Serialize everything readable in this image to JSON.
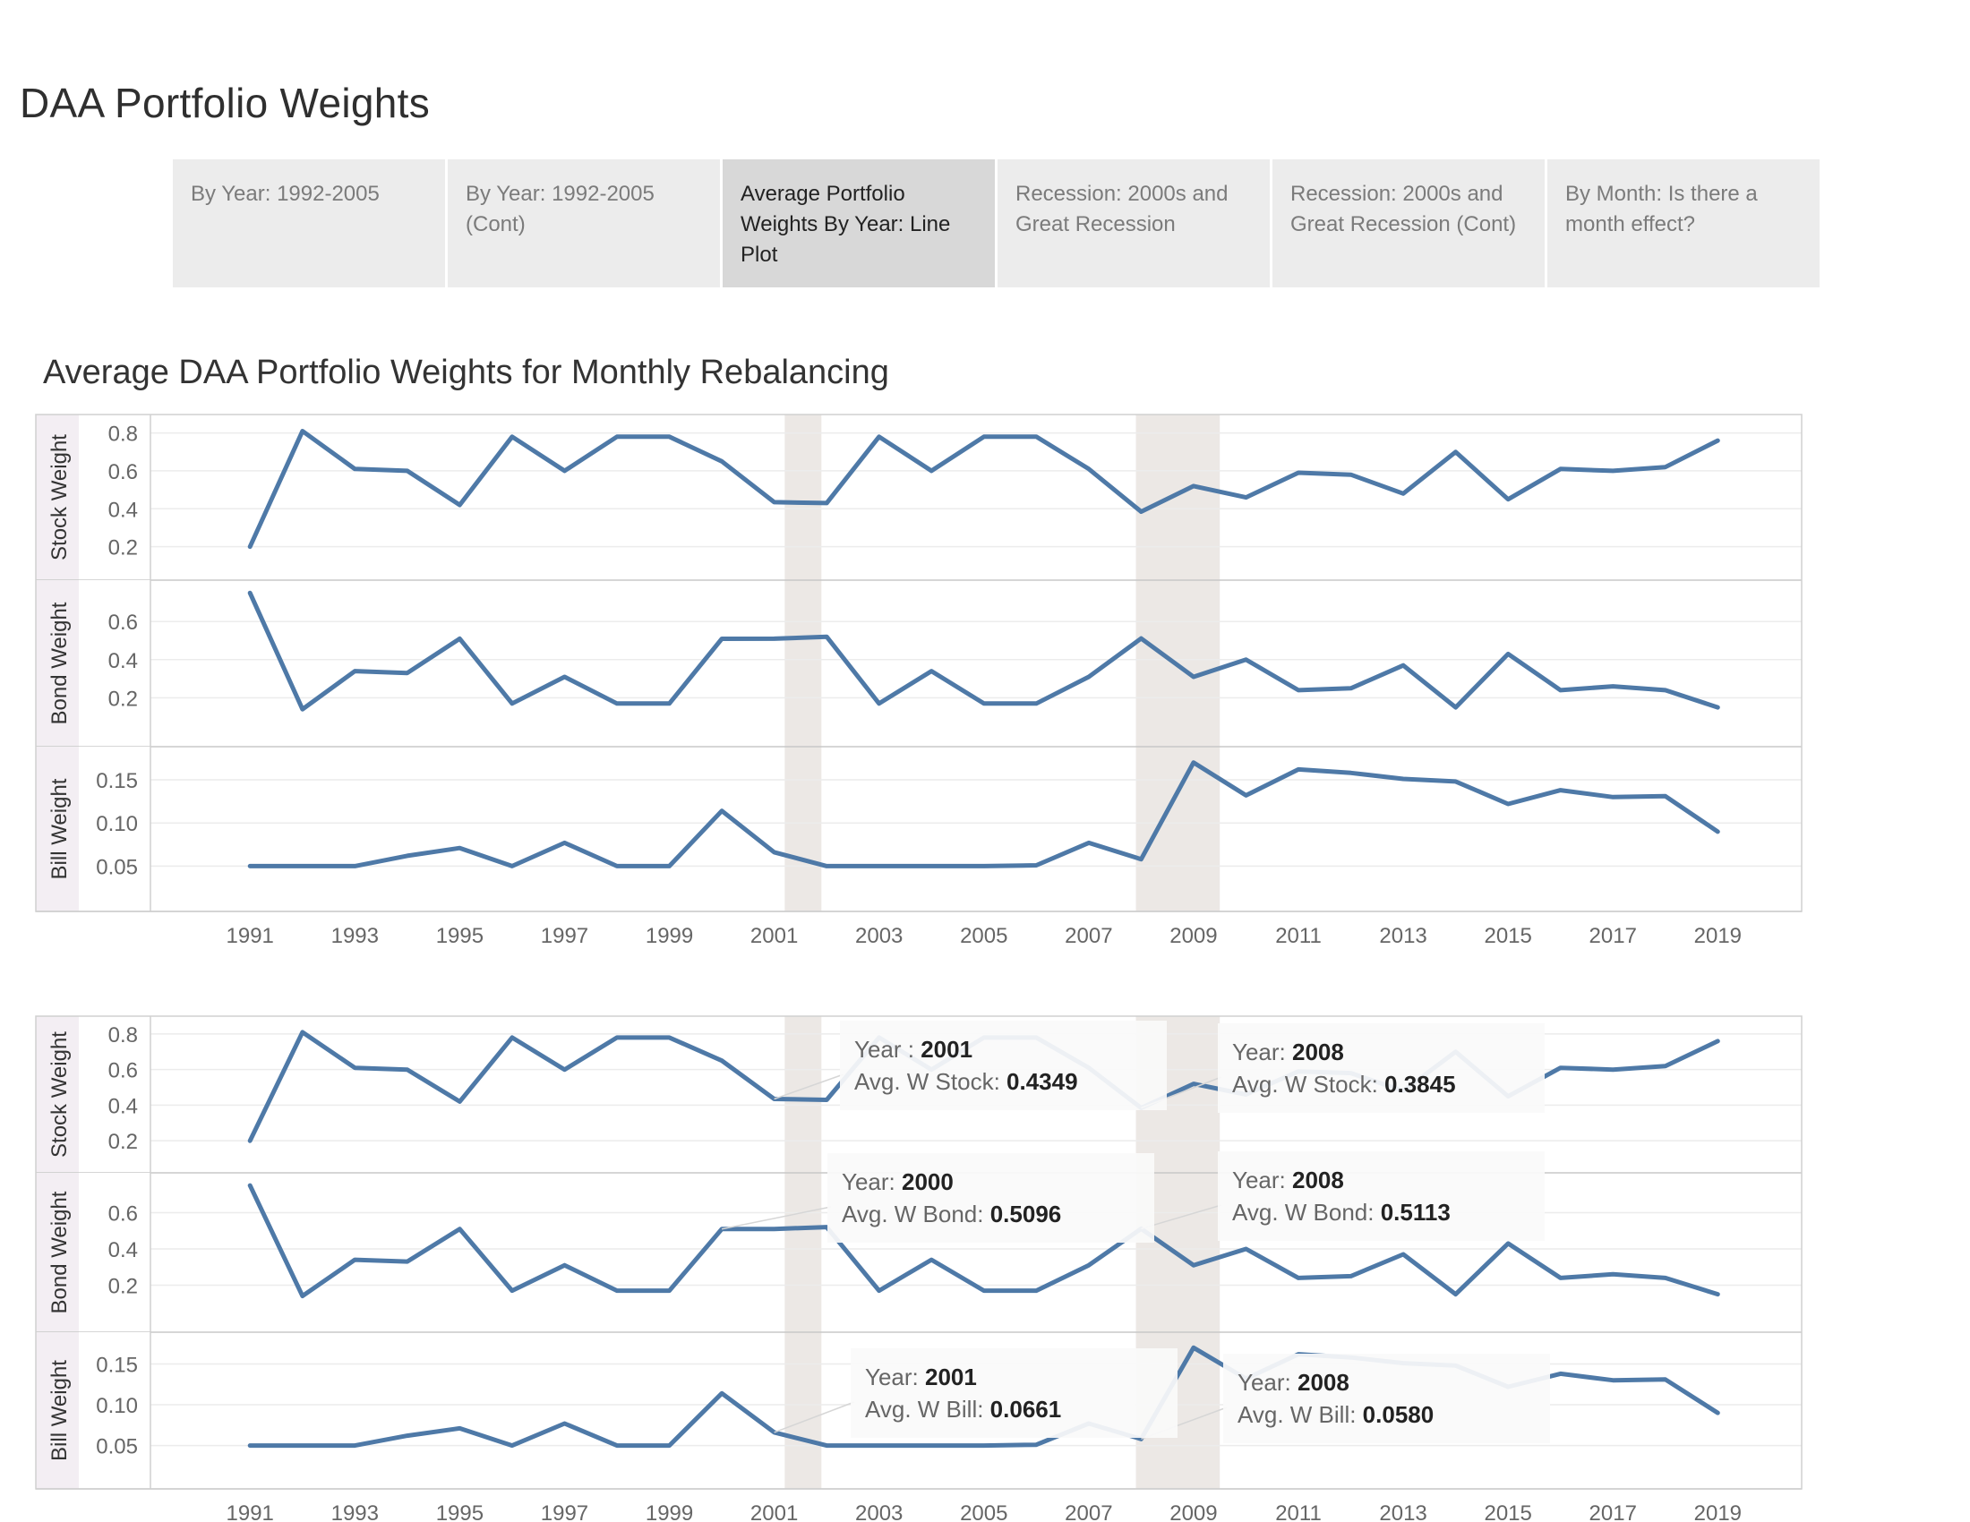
{
  "page_title": "DAA Portfolio Weights",
  "tabs": [
    {
      "label": "By Year: 1992-2005",
      "active": false
    },
    {
      "label": "By Year: 1992-2005 (Cont)",
      "active": false
    },
    {
      "label": "Average Portfolio Weights By Year: Line Plot",
      "active": true
    },
    {
      "label": "Recession: 2000s and Great Recession",
      "active": false
    },
    {
      "label": "Recession: 2000s and Great Recession (Cont)",
      "active": false
    },
    {
      "label": "By Month: Is there a month effect?",
      "active": false
    }
  ],
  "chart_title": "Average DAA Portfolio Weights for Monthly Rebalancing",
  "colors": {
    "line": "#4e79a7",
    "recession_band": "#ece8e5",
    "axis_label_bg": "#f3eef3",
    "grid": "#ececec"
  },
  "chart_data": [
    {
      "type": "line",
      "x_label_ticks": [
        1991,
        1993,
        1995,
        1997,
        1999,
        2001,
        2003,
        2005,
        2007,
        2009,
        2011,
        2013,
        2015,
        2017,
        2019
      ],
      "x": [
        1991,
        1992,
        1993,
        1994,
        1995,
        1996,
        1997,
        1998,
        1999,
        2000,
        2001,
        2002,
        2003,
        2004,
        2005,
        2006,
        2007,
        2008,
        2009,
        2010,
        2011,
        2012,
        2013,
        2014,
        2015,
        2016,
        2017,
        2018,
        2019
      ],
      "recession_bands": [
        [
          2001.2,
          2001.9
        ],
        [
          2007.9,
          2009.5
        ]
      ],
      "series": [
        {
          "name": "Stock Weight",
          "ylim": [
            0.08,
            0.85
          ],
          "yticks": [
            "0.2",
            "0.4",
            "0.6",
            "0.8"
          ],
          "values": [
            0.2,
            0.81,
            0.61,
            0.6,
            0.42,
            0.78,
            0.6,
            0.78,
            0.78,
            0.65,
            0.4349,
            0.43,
            0.78,
            0.6,
            0.78,
            0.78,
            0.61,
            0.3845,
            0.52,
            0.46,
            0.59,
            0.58,
            0.48,
            0.7,
            0.45,
            0.61,
            0.6,
            0.62,
            0.76
          ]
        },
        {
          "name": "Bond Weight",
          "ylim": [
            0.0,
            0.77
          ],
          "yticks": [
            "0.2",
            "0.4",
            "0.6"
          ],
          "values": [
            0.75,
            0.14,
            0.34,
            0.33,
            0.51,
            0.17,
            0.31,
            0.17,
            0.17,
            0.5096,
            0.51,
            0.52,
            0.17,
            0.34,
            0.17,
            0.17,
            0.31,
            0.5113,
            0.31,
            0.4,
            0.24,
            0.25,
            0.37,
            0.15,
            0.43,
            0.24,
            0.26,
            0.24,
            0.15
          ]
        },
        {
          "name": "Bill Weight",
          "ylim": [
            0.01,
            0.178
          ],
          "yticks": [
            "0.05",
            "0.10",
            "0.15"
          ],
          "values": [
            0.05,
            0.05,
            0.05,
            0.062,
            0.071,
            0.05,
            0.077,
            0.05,
            0.05,
            0.114,
            0.0661,
            0.05,
            0.05,
            0.05,
            0.05,
            0.051,
            0.077,
            0.058,
            0.17,
            0.132,
            0.162,
            0.158,
            0.151,
            0.148,
            0.122,
            0.138,
            0.13,
            0.131,
            0.09
          ]
        }
      ]
    },
    {
      "type": "line",
      "x_label_ticks": [
        1991,
        1993,
        1995,
        1997,
        1999,
        2001,
        2003,
        2005,
        2007,
        2009,
        2011,
        2013,
        2015,
        2017,
        2019
      ],
      "x": [
        1991,
        1992,
        1993,
        1994,
        1995,
        1996,
        1997,
        1998,
        1999,
        2000,
        2001,
        2002,
        2003,
        2004,
        2005,
        2006,
        2007,
        2008,
        2009,
        2010,
        2011,
        2012,
        2013,
        2014,
        2015,
        2016,
        2017,
        2018,
        2019
      ],
      "recession_bands": [
        [
          2001.2,
          2001.9
        ],
        [
          2007.9,
          2009.5
        ]
      ],
      "series": [
        {
          "name": "Stock Weight",
          "ylim": [
            0.08,
            0.85
          ],
          "yticks": [
            "0.2",
            "0.4",
            "0.6",
            "0.8"
          ],
          "values": [
            0.2,
            0.81,
            0.61,
            0.6,
            0.42,
            0.78,
            0.6,
            0.78,
            0.78,
            0.65,
            0.4349,
            0.43,
            0.78,
            0.6,
            0.78,
            0.78,
            0.61,
            0.3845,
            0.52,
            0.46,
            0.59,
            0.58,
            0.48,
            0.7,
            0.45,
            0.61,
            0.6,
            0.62,
            0.76
          ]
        },
        {
          "name": "Bond Weight",
          "ylim": [
            0.0,
            0.77
          ],
          "yticks": [
            "0.2",
            "0.4",
            "0.6"
          ],
          "values": [
            0.75,
            0.14,
            0.34,
            0.33,
            0.51,
            0.17,
            0.31,
            0.17,
            0.17,
            0.5096,
            0.51,
            0.52,
            0.17,
            0.34,
            0.17,
            0.17,
            0.31,
            0.5113,
            0.31,
            0.4,
            0.24,
            0.25,
            0.37,
            0.15,
            0.43,
            0.24,
            0.26,
            0.24,
            0.15
          ]
        },
        {
          "name": "Bill Weight",
          "ylim": [
            0.01,
            0.178
          ],
          "yticks": [
            "0.05",
            "0.10",
            "0.15"
          ],
          "values": [
            0.05,
            0.05,
            0.05,
            0.062,
            0.071,
            0.05,
            0.077,
            0.05,
            0.05,
            0.114,
            0.0661,
            0.05,
            0.05,
            0.05,
            0.05,
            0.051,
            0.077,
            0.058,
            0.17,
            0.132,
            0.162,
            0.158,
            0.151,
            0.148,
            0.122,
            0.138,
            0.13,
            0.131,
            0.09
          ]
        }
      ],
      "annotations": [
        {
          "year_label": "Year ",
          "year": "2001",
          "metric_label": "Avg. W Stock",
          "value": "0.4349",
          "series": 0,
          "x": 2001
        },
        {
          "year_label": "Year",
          "year": "2008",
          "metric_label": "Avg. W Stock",
          "value": "0.3845",
          "series": 0,
          "x": 2008
        },
        {
          "year_label": "Year",
          "year": "2000",
          "metric_label": "Avg. W Bond",
          "value": "0.5096",
          "series": 1,
          "x": 2000
        },
        {
          "year_label": "Year",
          "year": "2008",
          "metric_label": "Avg. W Bond",
          "value": "0.5113",
          "series": 1,
          "x": 2008
        },
        {
          "year_label": "Year",
          "year": "2001",
          "metric_label": "Avg. W Bill",
          "value": "0.0661",
          "series": 2,
          "x": 2001
        },
        {
          "year_label": "Year",
          "year": "2008",
          "metric_label": "Avg. W Bill",
          "value": "0.0580",
          "series": 2,
          "x": 2008
        }
      ]
    }
  ]
}
